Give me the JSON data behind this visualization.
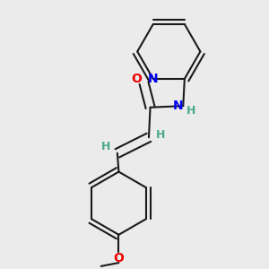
{
  "bg_color": "#ebebeb",
  "bond_color": "#1a1a1a",
  "bond_width": 1.5,
  "N_color": "#0000ee",
  "O_color": "#ee0000",
  "H_color": "#4aaa88",
  "figsize": [
    3.0,
    3.0
  ],
  "dpi": 100,
  "xlim": [
    0.05,
    0.95
  ],
  "ylim": [
    0.03,
    0.97
  ]
}
